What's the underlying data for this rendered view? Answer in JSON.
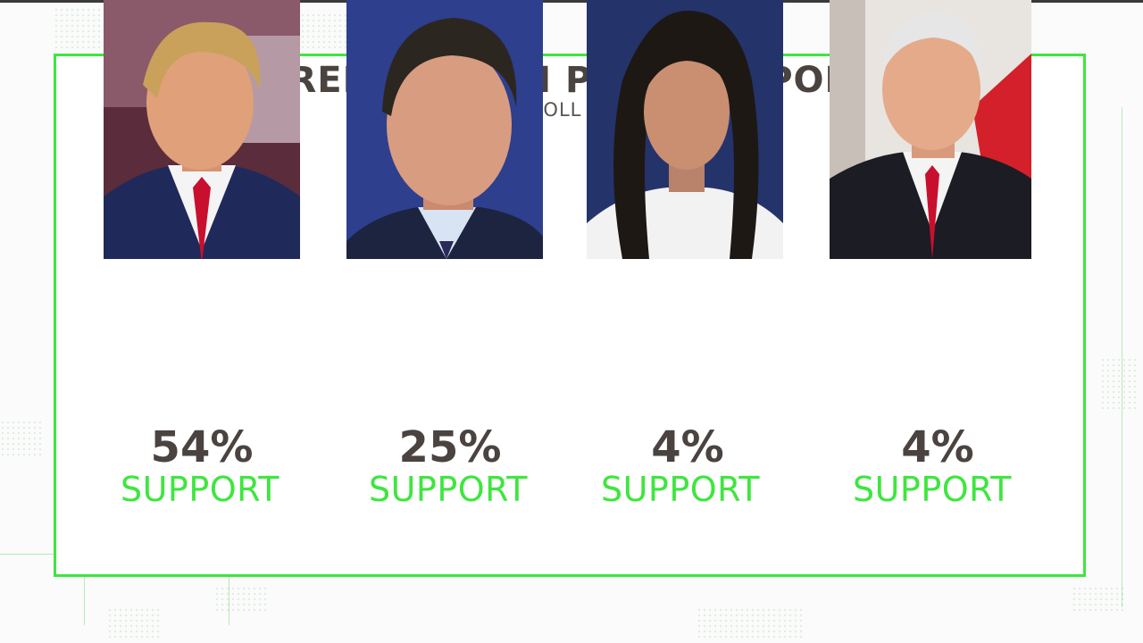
{
  "graphic": {
    "title": "REPUBLICAN PRIMARY POLL",
    "subtitle": "QUINNIPIAC POLL JULY 19TH, 2023"
  },
  "candidates": [
    {
      "percent": "54%",
      "label": "SUPPORT",
      "photo_bg": "#6a2a3a",
      "suit": "#1f2a5a",
      "tie": "#c8102e",
      "hair": "#c9a15a",
      "skin": "#e0a07a"
    },
    {
      "percent": "25%",
      "label": "SUPPORT",
      "photo_bg": "#2e3f8e",
      "suit": "#1c2440",
      "tie": "#2a2a5a",
      "hair": "#2c2620",
      "skin": "#d89c80"
    },
    {
      "percent": "4%",
      "label": "SUPPORT",
      "photo_bg": "#25336b",
      "suit": "#f2f2f2",
      "tie": "#f2f2f2",
      "hair": "#1e1814",
      "skin": "#c98f70"
    },
    {
      "percent": "4%",
      "label": "SUPPORT",
      "photo_bg": "#e8e4e0",
      "suit": "#1c1c24",
      "tie": "#c8102e",
      "hair": "#e6e6e6",
      "skin": "#e4aa8a"
    }
  ],
  "colors": {
    "accent_green": "#3ee63e",
    "text_dark": "#4a4340"
  }
}
